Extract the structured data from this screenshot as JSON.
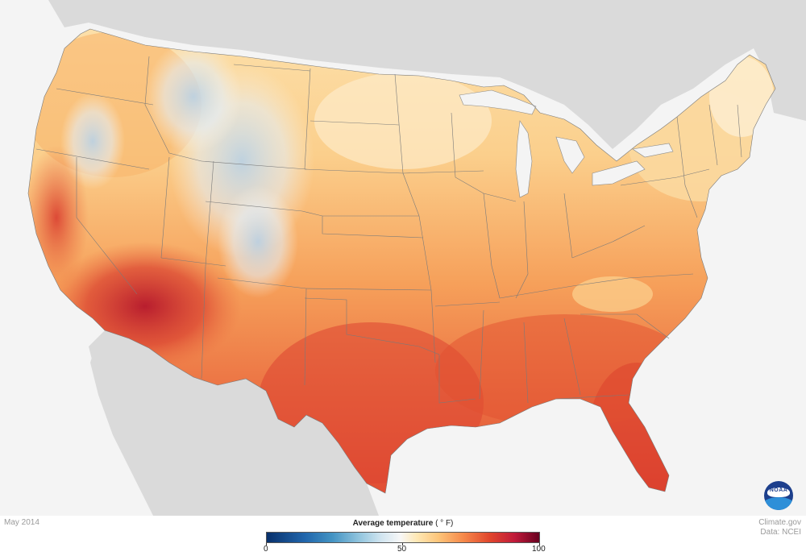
{
  "map": {
    "subject": "Average temperature map of the contiguous United States",
    "colors": {
      "ocean": "#f4f4f4",
      "surrounding_land": "#dadada",
      "state_border": "#7a7a7a",
      "cool_blue": "#bcd6ea",
      "neutral": "#fbf3e4",
      "warm_light": "#fcd79a",
      "warm_mid": "#f7a258",
      "warm_hot": "#ea6a3c",
      "hot_red": "#d93a2e",
      "very_hot": "#a51b2e"
    }
  },
  "footer": {
    "date": "May 2014",
    "credit_line1": "Climate.gov",
    "credit_line2": "Data: NCEI"
  },
  "legend": {
    "title": "Average temperature",
    "unit": "( ° F)",
    "min_label": "0",
    "mid_label": "50",
    "max_label": "100"
  },
  "logo": {
    "name": "noaa-logo",
    "text": "NOAA"
  }
}
